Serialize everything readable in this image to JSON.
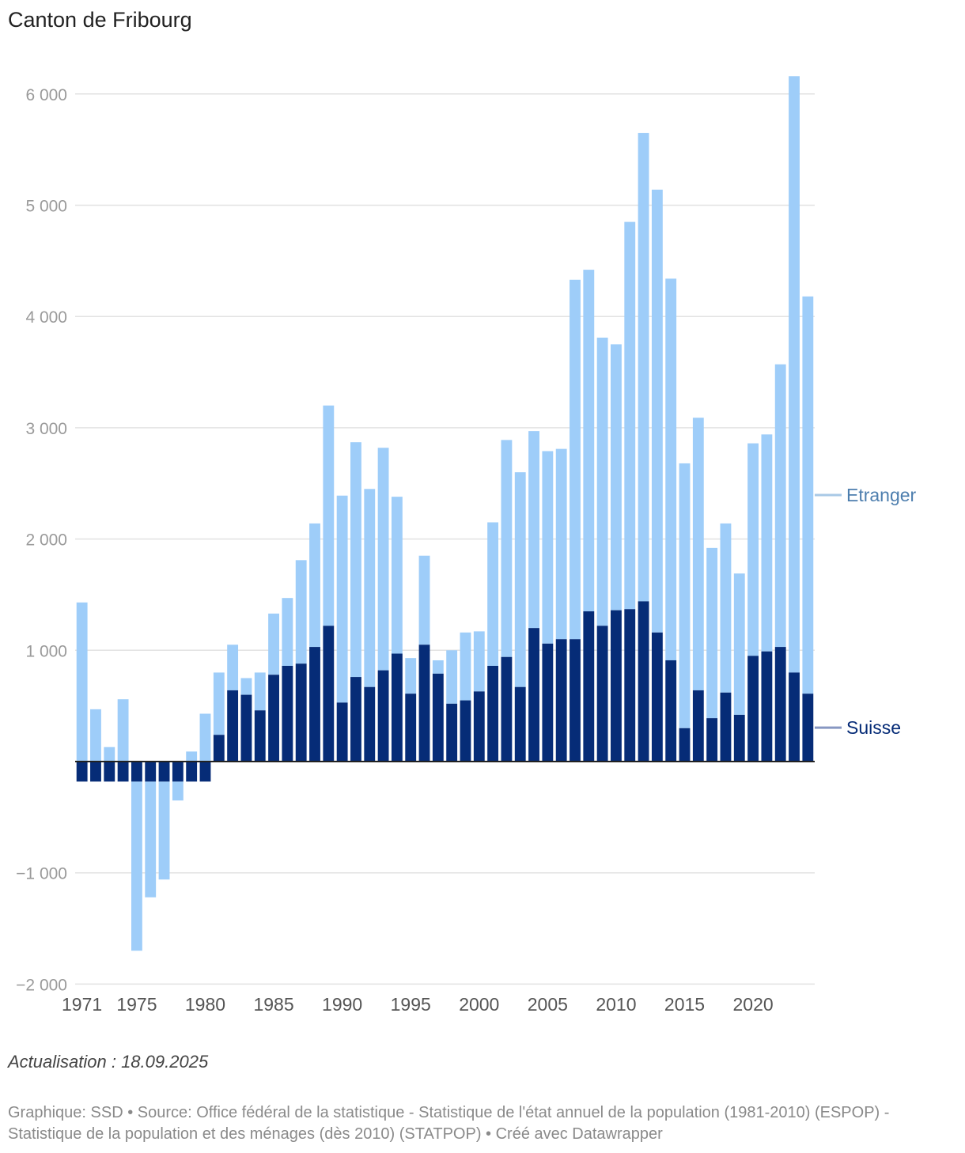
{
  "title": "Canton de Fribourg",
  "updated": "Actualisation : 18.09.2025",
  "footer": "Graphique: SSD • Source: Office fédéral de la statistique - Statistique de l'état annuel de la population (1981-2010) (ESPOP) - Statistique de la population et des ménages (dès 2010) (STATPOP) • Créé avec Datawrapper",
  "colors": {
    "suisse": "#062c77",
    "etranger": "#9ecdf9",
    "etranger_label": "#4d7eae",
    "grid": "#e2e2e2"
  },
  "chart_data": {
    "type": "bar",
    "stacked": true,
    "ylim": [
      -2000,
      6000
    ],
    "yticks": [
      -2000,
      -1000,
      1000,
      2000,
      3000,
      4000,
      5000,
      6000
    ],
    "ytick_labels": [
      "−2 000",
      "−1 000",
      "1 000",
      "2 000",
      "3 000",
      "4 000",
      "5 000",
      "6 000"
    ],
    "xtick_labels": [
      "1971",
      "1975",
      "1980",
      "1985",
      "1990",
      "1995",
      "2000",
      "2005",
      "2010",
      "2015",
      "2020"
    ],
    "categories": [
      1971,
      1972,
      1973,
      1974,
      1975,
      1976,
      1977,
      1978,
      1979,
      1980,
      1981,
      1982,
      1983,
      1984,
      1985,
      1986,
      1987,
      1988,
      1989,
      1990,
      1991,
      1992,
      1993,
      1994,
      1995,
      1996,
      1997,
      1998,
      1999,
      2000,
      2001,
      2002,
      2003,
      2004,
      2005,
      2006,
      2007,
      2008,
      2009,
      2010,
      2011,
      2012,
      2013,
      2014,
      2015,
      2016,
      2017,
      2018,
      2019,
      2020,
      2021,
      2022,
      2023,
      2024
    ],
    "series": [
      {
        "name": "Suisse",
        "label": "Suisse",
        "values": [
          -180,
          -180,
          -180,
          -180,
          -180,
          -180,
          -180,
          -180,
          -180,
          -180,
          240,
          640,
          600,
          460,
          780,
          860,
          880,
          1030,
          1220,
          530,
          760,
          670,
          820,
          970,
          610,
          1050,
          790,
          520,
          550,
          630,
          860,
          940,
          670,
          1200,
          1060,
          1100,
          1100,
          1350,
          1220,
          1360,
          1370,
          1440,
          1160,
          910,
          300,
          640,
          390,
          620,
          420,
          950,
          990,
          1030,
          800,
          610
        ]
      },
      {
        "name": "Etranger",
        "label": "Etranger",
        "values": [
          1430,
          470,
          130,
          560,
          -1520,
          -1040,
          -880,
          -170,
          90,
          430,
          560,
          410,
          150,
          340,
          550,
          610,
          930,
          1110,
          1980,
          1860,
          2110,
          1780,
          2000,
          1410,
          320,
          800,
          120,
          480,
          610,
          540,
          1290,
          1950,
          1930,
          1770,
          1730,
          1710,
          3230,
          3070,
          2590,
          2390,
          3480,
          4210,
          3980,
          3430,
          2380,
          2450,
          1530,
          1520,
          1270,
          1910,
          1950,
          2540,
          5360,
          3570
        ]
      }
    ]
  }
}
